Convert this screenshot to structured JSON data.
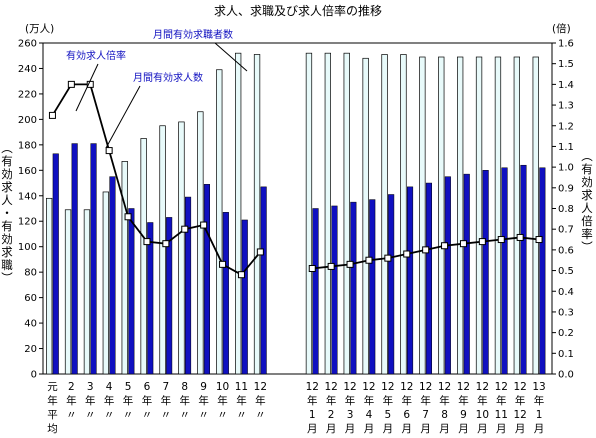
{
  "chart_data": {
    "type": "bar",
    "title": "求人、求職及び求人倍率の推移",
    "ylabel_left": "(有効求人・有効求職)",
    "ylabel_right": "(有効求人倍率)",
    "y_unit_left": "(万人)",
    "y_unit_right": "(倍)",
    "ylim_left": [
      0,
      260
    ],
    "ylim_right": [
      0,
      1.6
    ],
    "yticks_left": [
      "0",
      "20",
      "40",
      "60",
      "80",
      "100",
      "120",
      "140",
      "160",
      "180",
      "200",
      "220",
      "240",
      "260"
    ],
    "yticks_right": [
      "0.0",
      "0.1",
      "0.2",
      "0.3",
      "0.4",
      "0.5",
      "0.6",
      "0.7",
      "0.8",
      "0.9",
      "1.0",
      "1.1",
      "1.2",
      "1.3",
      "1.4",
      "1.5",
      "1.6"
    ],
    "categories": [
      [
        "元",
        "年",
        "平",
        "均"
      ],
      [
        "2",
        "年",
        "〃"
      ],
      [
        "3",
        "年",
        "〃"
      ],
      [
        "4",
        "年",
        "〃"
      ],
      [
        "5",
        "年",
        "〃"
      ],
      [
        "6",
        "年",
        "〃"
      ],
      [
        "7",
        "年",
        "〃"
      ],
      [
        "8",
        "年",
        "〃"
      ],
      [
        "9",
        "年",
        "〃"
      ],
      [
        "10",
        "年",
        "〃"
      ],
      [
        "11",
        "年",
        "〃"
      ],
      [
        "12",
        "年",
        "〃"
      ],
      [
        "12",
        "年",
        "1",
        "月"
      ],
      [
        "12",
        "年",
        "2",
        "月"
      ],
      [
        "12",
        "年",
        "3",
        "月"
      ],
      [
        "12",
        "年",
        "4",
        "月"
      ],
      [
        "12",
        "年",
        "5",
        "月"
      ],
      [
        "12",
        "年",
        "6",
        "月"
      ],
      [
        "12",
        "年",
        "7",
        "月"
      ],
      [
        "12",
        "年",
        "8",
        "月"
      ],
      [
        "12",
        "年",
        "9",
        "月"
      ],
      [
        "12",
        "年",
        "10",
        "月"
      ],
      [
        "12",
        "年",
        "11",
        "月"
      ],
      [
        "12",
        "年",
        "12",
        "月"
      ],
      [
        "13",
        "年",
        "1",
        "月"
      ]
    ],
    "groups": [
      12,
      13
    ],
    "series": [
      {
        "name": "月間有効求職者数",
        "kind": "bar",
        "axis": "left",
        "color": "#e8fafa",
        "values": [
          138,
          129,
          129,
          143,
          167,
          185,
          195,
          198,
          206,
          239,
          252,
          251,
          252,
          252,
          252,
          248,
          251,
          251,
          249,
          249,
          249,
          249,
          249,
          249,
          249
        ]
      },
      {
        "name": "月間有効求人数",
        "kind": "bar",
        "axis": "left",
        "color": "#1010c0",
        "values": [
          173,
          181,
          181,
          155,
          130,
          119,
          123,
          139,
          149,
          127,
          121,
          147,
          130,
          132,
          135,
          137,
          141,
          147,
          150,
          155,
          157,
          160,
          162,
          164,
          162
        ]
      },
      {
        "name": "有効求人倍率",
        "kind": "line",
        "axis": "right",
        "color": "#000000",
        "values": [
          1.25,
          1.4,
          1.4,
          1.08,
          0.76,
          0.64,
          0.63,
          0.7,
          0.72,
          0.53,
          0.48,
          0.59,
          0.51,
          0.52,
          0.53,
          0.55,
          0.56,
          0.58,
          0.6,
          0.62,
          0.63,
          0.64,
          0.65,
          0.66,
          0.65
        ]
      }
    ],
    "annotations": [
      "有効求人倍率",
      "月間有効求人数",
      "月間有効求職者数"
    ],
    "grid": false
  }
}
